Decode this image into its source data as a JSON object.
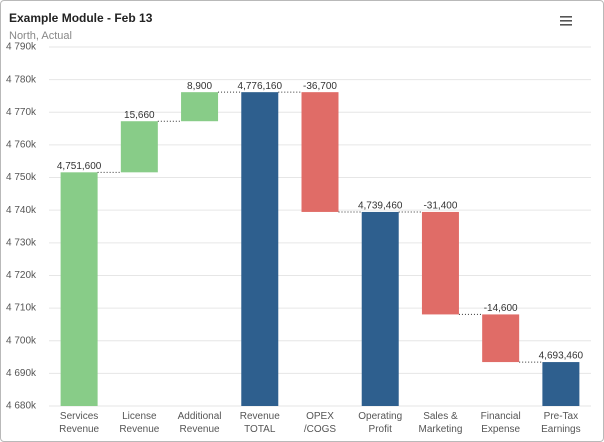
{
  "chart_data": {
    "type": "waterfall",
    "title": "Example Module - Feb 13",
    "subtitle": "North, Actual",
    "categories": [
      "Services\nRevenue",
      "License\nRevenue",
      "Additional\nRevenue",
      "Revenue\nTOTAL",
      "OPEX\n/COGS",
      "Operating\nProfit",
      "Sales &\nMarketing",
      "Financial\nExpense",
      "Pre-Tax\nEarnings"
    ],
    "values": [
      4751600,
      15660,
      8900,
      4776160,
      -36700,
      4739460,
      -31400,
      -14600,
      4693460
    ],
    "value_labels": [
      "4,751,600",
      "15,660",
      "8,900",
      "4,776,160",
      "-36,700",
      "4,739,460",
      "-31,400",
      "-14,600",
      "4,693,460"
    ],
    "is_total": [
      false,
      false,
      false,
      true,
      false,
      true,
      false,
      false,
      true
    ],
    "colors": {
      "increase": "#88cc88",
      "decrease": "#e06c67",
      "total": "#2e5f8e"
    },
    "ylim": [
      4680000,
      4790000
    ],
    "yticks": [
      {
        "value": 4680000,
        "label": "4 680k"
      },
      {
        "value": 4690000,
        "label": "4 690k"
      },
      {
        "value": 4700000,
        "label": "4 700k"
      },
      {
        "value": 4710000,
        "label": "4 710k"
      },
      {
        "value": 4720000,
        "label": "4 720k"
      },
      {
        "value": 4730000,
        "label": "4 730k"
      },
      {
        "value": 4740000,
        "label": "4 740k"
      },
      {
        "value": 4750000,
        "label": "4 750k"
      },
      {
        "value": 4760000,
        "label": "4 760k"
      },
      {
        "value": 4770000,
        "label": "4 770k"
      },
      {
        "value": 4780000,
        "label": "4 780k"
      },
      {
        "value": 4790000,
        "label": "4 790k"
      }
    ],
    "grid": true
  }
}
